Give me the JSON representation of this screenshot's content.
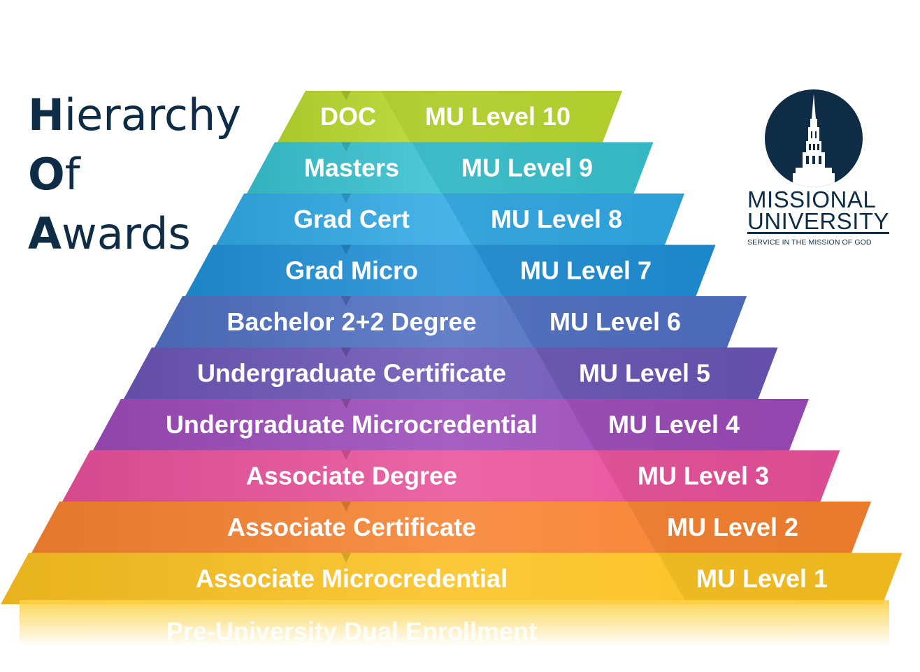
{
  "title": {
    "line1": {
      "cap": "H",
      "rest": "ierarchy"
    },
    "line2": {
      "cap": "O",
      "rest": "f"
    },
    "line3": {
      "cap": "A",
      "rest": "wards"
    }
  },
  "logo": {
    "name_line1": "MISSIONAL",
    "name_line2": "UNIVERSITY",
    "tagline": "SERVICE IN THE MISSION OF GOD",
    "icon": "chapel-steeple-icon",
    "color": "#0e2c45"
  },
  "levels": [
    {
      "award": "DOC",
      "level": "MU Level 10",
      "color": "#b9d92e"
    },
    {
      "award": "Masters",
      "level": "MU Level 9",
      "color": "#37c2cf"
    },
    {
      "award": "Grad Cert",
      "level": "MU Level 8",
      "color": "#2fa9e4"
    },
    {
      "award": "Grad Micro",
      "level": "MU Level 7",
      "color": "#1f8fd6"
    },
    {
      "award": "Bachelor 2+2 Degree",
      "level": "MU Level 6",
      "color": "#4f6fc2"
    },
    {
      "award": "Undergraduate Certificate",
      "level": "MU Level 5",
      "color": "#6a55b5"
    },
    {
      "award": "Undergraduate Microcredential",
      "level": "MU Level 4",
      "color": "#9b4ab8"
    },
    {
      "award": "Associate Degree",
      "level": "MU Level 3",
      "color": "#e8509a"
    },
    {
      "award": "Associate Certificate",
      "level": "MU Level 2",
      "color": "#f7812f"
    },
    {
      "award": "Associate Microcredential",
      "level": "MU Level 1",
      "color": "#fbc21f"
    }
  ],
  "base": {
    "label": "Pre-University Dual Enrollment",
    "color": "#fbd24a"
  }
}
